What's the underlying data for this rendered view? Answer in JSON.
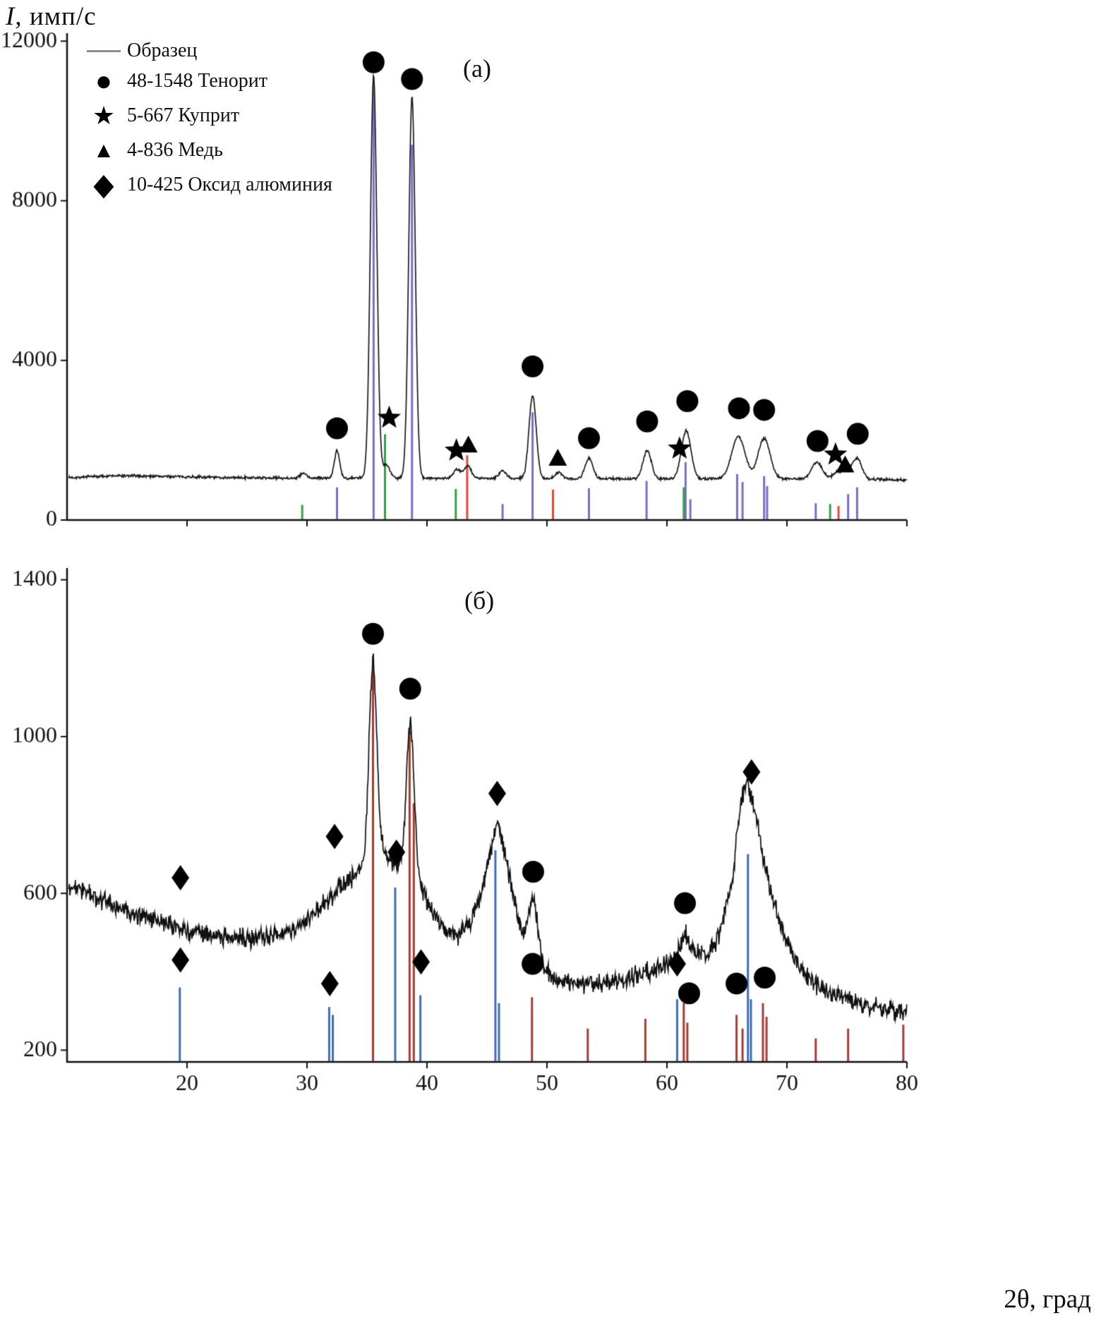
{
  "figure": {
    "y_axis_title_var": "I",
    "y_axis_title_rest": ", имп/с",
    "x_axis_title_var": "2θ",
    "x_axis_title_rest": ", град"
  },
  "legend": {
    "items": [
      {
        "symbol": "line",
        "glyph": "",
        "label": "Образец"
      },
      {
        "symbol": "circle",
        "glyph": "●",
        "label": "48-1548 Тенорит"
      },
      {
        "symbol": "star",
        "glyph": "★",
        "label": "5-667 Куприт"
      },
      {
        "symbol": "triangle",
        "glyph": "▲",
        "label": "4-836 Медь"
      },
      {
        "symbol": "diamond",
        "glyph": "◆",
        "label": "10-425 Оксид алюминия"
      }
    ]
  },
  "chart_data": [
    {
      "type": "line",
      "panel_label": "(а)",
      "xlabel": "2θ, град",
      "ylabel": "I, имп/с",
      "xlim": [
        10,
        80
      ],
      "ylim": [
        0,
        12200
      ],
      "x_ticks": [
        20,
        30,
        40,
        50,
        60,
        70,
        80
      ],
      "x_tick_labels": [],
      "y_ticks": [
        0,
        4000,
        8000,
        12000
      ],
      "y_tick_labels": [
        "0",
        "4000",
        "8000",
        "12000"
      ],
      "grid": false,
      "sample": {
        "name": "Образец",
        "color": "#1a1a1a",
        "noise": 42,
        "seed": 7,
        "background": [
          [
            10,
            1060
          ],
          [
            14,
            1110
          ],
          [
            18,
            1095
          ],
          [
            24,
            1060
          ],
          [
            30,
            1050
          ],
          [
            36,
            1055
          ],
          [
            42,
            1045
          ],
          [
            48,
            1040
          ],
          [
            54,
            1035
          ],
          [
            60,
            1030
          ],
          [
            66,
            1040
          ],
          [
            72,
            1025
          ],
          [
            80,
            1010
          ]
        ],
        "peaks": [
          [
            29.7,
            120,
            0.25
          ],
          [
            32.5,
            680,
            0.22
          ],
          [
            35.55,
            10100,
            0.27
          ],
          [
            36.6,
            330,
            0.3
          ],
          [
            38.75,
            9550,
            0.27
          ],
          [
            42.5,
            230,
            0.3
          ],
          [
            43.4,
            310,
            0.3
          ],
          [
            46.3,
            200,
            0.3
          ],
          [
            48.8,
            2080,
            0.3
          ],
          [
            51.0,
            160,
            0.3
          ],
          [
            53.5,
            520,
            0.32
          ],
          [
            58.35,
            700,
            0.35
          ],
          [
            61.6,
            1200,
            0.4
          ],
          [
            65.95,
            1060,
            0.55
          ],
          [
            68.1,
            1010,
            0.5
          ],
          [
            72.5,
            420,
            0.45
          ],
          [
            74.2,
            180,
            0.35
          ],
          [
            75.0,
            200,
            0.35
          ],
          [
            75.85,
            520,
            0.4
          ]
        ]
      },
      "reference_series": [
        {
          "name": "48-1548 Тенорит",
          "color": "#7a6cc8",
          "sticks": [
            [
              32.5,
              820
            ],
            [
              35.55,
              10900
            ],
            [
              38.75,
              9400
            ],
            [
              46.3,
              400
            ],
            [
              48.8,
              2700
            ],
            [
              53.5,
              800
            ],
            [
              58.3,
              980
            ],
            [
              61.55,
              1450
            ],
            [
              61.95,
              520
            ],
            [
              65.85,
              1150
            ],
            [
              66.3,
              950
            ],
            [
              68.1,
              1100
            ],
            [
              68.35,
              850
            ],
            [
              72.4,
              420
            ],
            [
              75.1,
              650
            ],
            [
              75.85,
              820
            ]
          ]
        },
        {
          "name": "5-667 Куприт",
          "color": "#2fa14b",
          "sticks": [
            [
              29.6,
              380
            ],
            [
              36.5,
              2150
            ],
            [
              42.4,
              780
            ],
            [
              61.4,
              820
            ],
            [
              73.6,
              400
            ]
          ]
        },
        {
          "name": "4-836 Медь",
          "color": "#e2483a",
          "sticks": [
            [
              43.35,
              1620
            ],
            [
              50.5,
              760
            ],
            [
              74.3,
              350
            ]
          ]
        }
      ],
      "annotations": [
        {
          "marker": "circle",
          "x": 32.5,
          "y": 2300
        },
        {
          "marker": "circle",
          "x": 35.55,
          "y": 11470
        },
        {
          "marker": "star",
          "x": 36.85,
          "y": 2560
        },
        {
          "marker": "circle",
          "x": 38.75,
          "y": 11050
        },
        {
          "marker": "star",
          "x": 42.45,
          "y": 1740
        },
        {
          "marker": "triangle",
          "x": 43.45,
          "y": 1870
        },
        {
          "marker": "circle",
          "x": 48.8,
          "y": 3850
        },
        {
          "marker": "triangle",
          "x": 50.9,
          "y": 1540
        },
        {
          "marker": "circle",
          "x": 53.5,
          "y": 2050
        },
        {
          "marker": "circle",
          "x": 58.35,
          "y": 2470
        },
        {
          "marker": "star",
          "x": 61.05,
          "y": 1790
        },
        {
          "marker": "circle",
          "x": 61.7,
          "y": 2980
        },
        {
          "marker": "circle",
          "x": 66.0,
          "y": 2800
        },
        {
          "marker": "circle",
          "x": 68.1,
          "y": 2760
        },
        {
          "marker": "circle",
          "x": 72.55,
          "y": 1980
        },
        {
          "marker": "star",
          "x": 74.05,
          "y": 1640
        },
        {
          "marker": "triangle",
          "x": 74.85,
          "y": 1370
        },
        {
          "marker": "circle",
          "x": 75.9,
          "y": 2160
        }
      ]
    },
    {
      "type": "line",
      "panel_label": "(б)",
      "xlabel": "2θ, град",
      "ylabel": "I, имп/с",
      "xlim": [
        10,
        80
      ],
      "ylim": [
        170,
        1430
      ],
      "x_ticks": [
        20,
        30,
        40,
        50,
        60,
        70,
        80
      ],
      "x_tick_labels": [
        "20",
        "30",
        "40",
        "50",
        "60",
        "70",
        "80"
      ],
      "y_ticks": [
        200,
        600,
        1000,
        1400
      ],
      "y_tick_labels": [
        "200",
        "600",
        "1000",
        "1400"
      ],
      "grid": false,
      "sample": {
        "name": "Образец",
        "color": "#101010",
        "noise": 30,
        "seed": 99,
        "background": [
          [
            10,
            625
          ],
          [
            12,
            595
          ],
          [
            14,
            565
          ],
          [
            16,
            545
          ],
          [
            19,
            515
          ],
          [
            22,
            492
          ],
          [
            25,
            482
          ],
          [
            28,
            500
          ],
          [
            30,
            530
          ],
          [
            32,
            590
          ],
          [
            34,
            650
          ],
          [
            35,
            668
          ],
          [
            36.5,
            700
          ],
          [
            37.4,
            672
          ],
          [
            38,
            655
          ],
          [
            39.3,
            630
          ],
          [
            40.3,
            560
          ],
          [
            41.5,
            505
          ],
          [
            42.5,
            490
          ],
          [
            43.5,
            520
          ],
          [
            44.5,
            600
          ],
          [
            45.4,
            720
          ],
          [
            45.9,
            780
          ],
          [
            46.4,
            720
          ],
          [
            47.2,
            590
          ],
          [
            48,
            490
          ],
          [
            48.6,
            445
          ],
          [
            49.5,
            410
          ],
          [
            50.5,
            385
          ],
          [
            52,
            370
          ],
          [
            54,
            368
          ],
          [
            56,
            378
          ],
          [
            58,
            395
          ],
          [
            59.5,
            410
          ],
          [
            60.8,
            440
          ],
          [
            61.5,
            500
          ],
          [
            62.3,
            450
          ],
          [
            63.5,
            440
          ],
          [
            64.5,
            510
          ],
          [
            65.5,
            650
          ],
          [
            66.2,
            840
          ],
          [
            66.7,
            880
          ],
          [
            67.3,
            820
          ],
          [
            68,
            700
          ],
          [
            68.8,
            590
          ],
          [
            69.8,
            490
          ],
          [
            71,
            415
          ],
          [
            72.5,
            365
          ],
          [
            74,
            340
          ],
          [
            76,
            318
          ],
          [
            78,
            305
          ],
          [
            80,
            298
          ]
        ],
        "peaks": [
          [
            35.5,
            510,
            0.33
          ],
          [
            38.6,
            390,
            0.33
          ],
          [
            48.85,
            140,
            0.4
          ]
        ]
      },
      "reference_series": [
        {
          "name": "48-1548 Тенорит",
          "color": "#a83a32",
          "sticks": [
            [
              35.5,
              1205
            ],
            [
              38.55,
              1015
            ],
            [
              38.9,
              830
            ],
            [
              48.75,
              335
            ],
            [
              53.4,
              255
            ],
            [
              58.2,
              280
            ],
            [
              61.4,
              320
            ],
            [
              61.7,
              270
            ],
            [
              65.8,
              290
            ],
            [
              66.3,
              255
            ],
            [
              68.0,
              320
            ],
            [
              68.3,
              285
            ],
            [
              72.4,
              230
            ],
            [
              75.1,
              255
            ],
            [
              79.7,
              265
            ]
          ]
        },
        {
          "name": "10-425 Оксид алюминия",
          "color": "#3f6cb4",
          "sticks": [
            [
              19.4,
              360
            ],
            [
              31.85,
              310
            ],
            [
              32.15,
              290
            ],
            [
              37.35,
              615
            ],
            [
              39.45,
              340
            ],
            [
              45.7,
              710
            ],
            [
              46.0,
              320
            ],
            [
              60.85,
              330
            ],
            [
              66.75,
              700
            ],
            [
              67.0,
              330
            ]
          ]
        }
      ],
      "annotations": [
        {
          "marker": "diamond",
          "x": 19.45,
          "y": 640
        },
        {
          "marker": "diamond",
          "x": 19.45,
          "y": 430
        },
        {
          "marker": "diamond",
          "x": 31.9,
          "y": 370
        },
        {
          "marker": "diamond",
          "x": 32.3,
          "y": 745
        },
        {
          "marker": "circle",
          "x": 35.5,
          "y": 1262
        },
        {
          "marker": "diamond",
          "x": 37.45,
          "y": 705
        },
        {
          "marker": "circle",
          "x": 38.6,
          "y": 1122
        },
        {
          "marker": "diamond",
          "x": 39.5,
          "y": 425
        },
        {
          "marker": "diamond",
          "x": 45.85,
          "y": 855
        },
        {
          "marker": "circle",
          "x": 48.85,
          "y": 655
        },
        {
          "marker": "circle",
          "x": 48.8,
          "y": 420
        },
        {
          "marker": "diamond",
          "x": 60.85,
          "y": 420
        },
        {
          "marker": "circle",
          "x": 61.5,
          "y": 575
        },
        {
          "marker": "circle",
          "x": 61.85,
          "y": 345
        },
        {
          "marker": "circle",
          "x": 65.8,
          "y": 370
        },
        {
          "marker": "diamond",
          "x": 67.05,
          "y": 910
        },
        {
          "marker": "circle",
          "x": 68.15,
          "y": 385
        }
      ]
    }
  ]
}
